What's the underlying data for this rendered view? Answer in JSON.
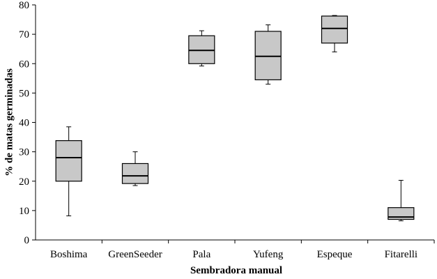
{
  "chart_data": {
    "type": "boxplot",
    "xlabel": "Sembradora manual",
    "ylabel": "% de matas germinadas",
    "ylim": [
      0,
      80
    ],
    "yticks": [
      0,
      10,
      20,
      30,
      40,
      50,
      60,
      70,
      80
    ],
    "grid": false,
    "colors": {
      "box_fill": "#c8c8c8",
      "stroke": "#000000"
    },
    "categories": [
      "Boshima",
      "GreenSeeder",
      "Pala",
      "Yufeng",
      "Espeque",
      "Fitarelli"
    ],
    "boxes": [
      {
        "min": 8.2,
        "q1": 20.0,
        "median": 28.0,
        "q3": 33.8,
        "max": 38.5
      },
      {
        "min": 18.5,
        "q1": 19.2,
        "median": 21.8,
        "q3": 26.0,
        "max": 30.0
      },
      {
        "min": 59.2,
        "q1": 60.0,
        "median": 64.5,
        "q3": 69.5,
        "max": 71.2
      },
      {
        "min": 53.0,
        "q1": 54.5,
        "median": 62.5,
        "q3": 71.0,
        "max": 73.2
      },
      {
        "min": 64.0,
        "q1": 67.0,
        "median": 72.0,
        "q3": 76.2,
        "max": 76.4
      },
      {
        "min": 6.5,
        "q1": 7.0,
        "median": 7.8,
        "q3": 11.0,
        "max": 20.3
      }
    ]
  }
}
